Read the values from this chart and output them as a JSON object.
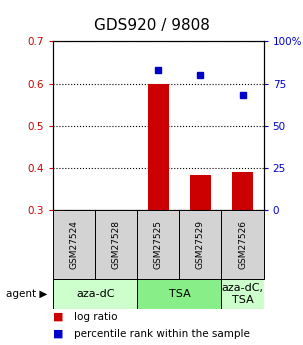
{
  "title": "GDS920 / 9808",
  "samples": [
    "GSM27524",
    "GSM27528",
    "GSM27525",
    "GSM27529",
    "GSM27526"
  ],
  "log_ratio": [
    null,
    null,
    0.6,
    0.385,
    0.39
  ],
  "percentile_rank": [
    null,
    null,
    83,
    80,
    68
  ],
  "ylim_left": [
    0.3,
    0.7
  ],
  "ylim_right": [
    0,
    100
  ],
  "yticks_left": [
    0.3,
    0.4,
    0.5,
    0.6,
    0.7
  ],
  "ytick_labels_left": [
    "0.3",
    "0.4",
    "0.5",
    "0.6",
    "0.7"
  ],
  "yticks_right": [
    0,
    25,
    50,
    75,
    100
  ],
  "ytick_labels_right": [
    "0",
    "25",
    "50",
    "75",
    "100%"
  ],
  "agents": [
    {
      "label": "aza-dC",
      "color": "#ccffcc",
      "start": 0,
      "end": 2
    },
    {
      "label": "TSA",
      "color": "#88ee88",
      "start": 2,
      "end": 4
    },
    {
      "label": "aza-dC,\nTSA",
      "color": "#ccffcc",
      "start": 4,
      "end": 5
    }
  ],
  "bar_color": "#cc0000",
  "marker_color": "#0000cc",
  "bar_width": 0.5,
  "left_label_color": "#cc0000",
  "right_label_color": "#0000cc",
  "title_fontsize": 11,
  "tick_fontsize": 7.5,
  "sample_fontsize": 6.5,
  "agent_fontsize": 8,
  "legend_fontsize": 7.5,
  "sample_bg": "#d3d3d3"
}
